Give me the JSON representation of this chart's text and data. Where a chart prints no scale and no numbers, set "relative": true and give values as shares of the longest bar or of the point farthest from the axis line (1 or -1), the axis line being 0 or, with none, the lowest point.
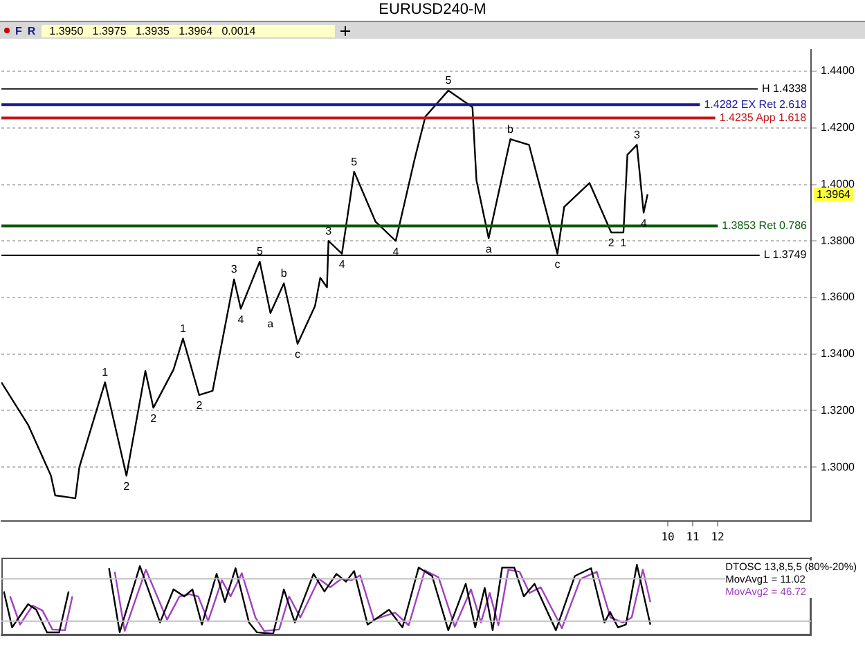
{
  "chart_data": [
    {
      "type": "line",
      "title": "EURUSD240-M",
      "subtitle": "1.3950   1.3975   1.3935   1.3964   0.0014",
      "annotations": [
        "F",
        "R",
        {
          "text": "1",
          "x": -12.59,
          "y": 1.33
        },
        {
          "text": "2",
          "x": -11.73,
          "y": 1.297
        },
        {
          "text": "2",
          "x": -10.65,
          "y": 1.321
        },
        {
          "text": "1",
          "x": -9.46,
          "y": 1.3455
        },
        {
          "text": "2",
          "x": -8.81,
          "y": 1.3255
        },
        {
          "text": "3",
          "x": -7.41,
          "y": 1.3664
        },
        {
          "text": "4",
          "x": -7.14,
          "y": 1.356
        },
        {
          "text": "5",
          "x": -6.38,
          "y": 1.3727
        },
        {
          "text": "a",
          "x": -5.95,
          "y": 1.3545
        },
        {
          "text": "b",
          "x": -5.41,
          "y": 1.365
        },
        {
          "text": "c",
          "x": -4.86,
          "y": 1.3436
        },
        {
          "text": "3",
          "x": -3.62,
          "y": 1.38
        },
        {
          "text": "4",
          "x": -3.08,
          "y": 1.3755
        },
        {
          "text": "5",
          "x": -2.59,
          "y": 1.4045
        },
        {
          "text": "4",
          "x": -0.92,
          "y": 1.38
        },
        {
          "text": "5",
          "x": 1.19,
          "y": 1.4332
        },
        {
          "text": "a",
          "x": 2.81,
          "y": 1.381
        },
        {
          "text": "b",
          "x": 3.68,
          "y": 1.416
        },
        {
          "text": "c",
          "x": 5.57,
          "y": 1.3755
        },
        {
          "text": "2",
          "x": 7.73,
          "y": 1.383
        },
        {
          "text": "1",
          "x": 8.22,
          "y": 1.383
        },
        {
          "text": "3",
          "x": 8.76,
          "y": 1.414
        },
        {
          "text": "4",
          "x": 9.03,
          "y": 1.39
        },
        {
          "text": "1.3964",
          "y": 1.3964
        }
      ],
      "x": [
        -16.75,
        -15.68,
        -14.76,
        -14.59,
        -13.78,
        -13.62,
        -12.59,
        -11.73,
        -10.97,
        -10.65,
        -9.84,
        -9.46,
        -8.81,
        -8.27,
        -7.41,
        -7.14,
        -6.38,
        -5.95,
        -5.41,
        -4.86,
        -4.16,
        -3.95,
        -3.68,
        -3.62,
        -3.08,
        -2.59,
        -1.73,
        -0.92,
        -0.16,
        0.27,
        1.19,
        2.16,
        2.32,
        2.81,
        3.68,
        4.43,
        5.57,
        5.84,
        6.86,
        7.73,
        8.22,
        8.38,
        8.76,
        9.03,
        9.19
      ],
      "values": [
        1.33,
        1.315,
        1.297,
        1.29,
        1.289,
        1.3,
        1.33,
        1.297,
        1.334,
        1.321,
        1.3345,
        1.3455,
        1.3255,
        1.327,
        1.3664,
        1.356,
        1.3727,
        1.3545,
        1.365,
        1.3436,
        1.357,
        1.367,
        1.3636,
        1.38,
        1.3755,
        1.4045,
        1.3868,
        1.38,
        1.409,
        1.424,
        1.4332,
        1.4273,
        1.4014,
        1.381,
        1.416,
        1.414,
        1.3755,
        1.392,
        1.4005,
        1.383,
        1.383,
        1.4105,
        1.414,
        1.39,
        1.3965
      ],
      "color": "#000000",
      "xlim": [
        -16.75,
        15.75
      ],
      "xticks": [
        10,
        11,
        12
      ],
      "ylim": [
        1.281,
        1.4477
      ],
      "yticks": [
        {
          "value": 1.3,
          "label": "1.3000"
        },
        {
          "value": 1.32,
          "label": "1.3200"
        },
        {
          "value": 1.34,
          "label": "1.3400"
        },
        {
          "value": 1.36,
          "label": "1.3600"
        },
        {
          "value": 1.38,
          "label": "1.3800"
        },
        {
          "value": 1.4,
          "label": "1.4000"
        },
        {
          "value": 1.42,
          "label": "1.4200"
        },
        {
          "value": 1.44,
          "label": "1.4400"
        }
      ],
      "grid": "y",
      "ref_lines": [
        {
          "axis": "y",
          "value": 1.4338,
          "label": "H 1.4338",
          "color": "#000000"
        },
        {
          "axis": "y",
          "value": 1.4282,
          "label": "1.4282 EX Ret 2.618",
          "color": "#1a1a9a"
        },
        {
          "axis": "y",
          "value": 1.4235,
          "label": "1.4235 App 1.618",
          "color": "#c01818"
        },
        {
          "axis": "y",
          "value": 1.3853,
          "label": "1.3853 Ret 0.786",
          "color": "#0a5a0a"
        },
        {
          "axis": "y",
          "value": 1.3749,
          "label": "L 1.3749",
          "color": "#000000"
        }
      ]
    },
    {
      "type": "line",
      "title": "DTOSC 13,8,5,5 (80%-20%)",
      "relative": true,
      "legend": "top right",
      "xlim": [
        -16.75,
        15.75
      ],
      "ref_lines": [
        {
          "axis": "y",
          "value": 0.2,
          "color": "#c0c0c0"
        },
        {
          "axis": "y",
          "value": 0.8,
          "color": "#c0c0c0"
        }
      ],
      "series": [
        {
          "name": "MovAvg1 = 11.02",
          "color": "#000000",
          "x": [
            -16.65,
            -16.32,
            -15.68,
            -15.35,
            -14.92,
            -14.43,
            -14.05,
            -13.2,
            -12.43,
            -12.0,
            -11.19,
            -10.38,
            -9.84,
            -9.41,
            -9.08,
            -8.7,
            -8.11,
            -7.78,
            -7.35,
            -6.81,
            -6.49,
            -5.84,
            -5.41,
            -4.97,
            -4.22,
            -3.78,
            -3.3,
            -2.92,
            -2.59,
            -2.05,
            -1.19,
            -0.65,
            0.0,
            0.54,
            1.19,
            1.89,
            2.27,
            2.65,
            2.97,
            3.35,
            3.84,
            4.22,
            4.65,
            5.51,
            6.27,
            6.92,
            7.46,
            7.68,
            8.0,
            8.32,
            8.76,
            9.3
          ],
          "values": [
            0.62,
            0.11,
            0.44,
            0.36,
            0.04,
            0.04,
            0.62,
            null,
            0.95,
            0.04,
            0.98,
            0.18,
            0.65,
            0.55,
            0.65,
            0.15,
            0.87,
            0.47,
            0.95,
            0.18,
            0.04,
            0.02,
            0.65,
            0.18,
            0.87,
            0.62,
            0.87,
            0.76,
            0.91,
            0.15,
            0.36,
            0.11,
            0.96,
            0.84,
            0.07,
            0.73,
            0.11,
            0.67,
            0.07,
            0.96,
            0.96,
            0.55,
            0.73,
            0.07,
            0.84,
            0.95,
            0.18,
            0.33,
            0.11,
            0.15,
            1,
            0.15
          ]
        },
        {
          "name": "MovAvg2 = 46.72",
          "color": "#a040c0",
          "x": [
            -16.4,
            -16.0,
            -15.5,
            -15.1,
            -14.7,
            -14.2,
            -13.9,
            -13.2,
            -12.2,
            -11.8,
            -10.95,
            -10.1,
            -9.6,
            -9.2,
            -8.85,
            -8.45,
            -7.9,
            -7.55,
            -7.1,
            -6.55,
            -6.2,
            -5.6,
            -5.2,
            -4.75,
            -4.0,
            -3.55,
            -3.1,
            -2.7,
            -2.35,
            -1.8,
            -0.95,
            -0.4,
            0.25,
            0.8,
            1.45,
            2.1,
            2.5,
            2.85,
            3.2,
            3.6,
            4.05,
            4.45,
            4.9,
            5.75,
            6.5,
            7.15,
            7.7,
            8.2,
            8.55,
            9.0,
            9.3
          ],
          "values": [
            0.55,
            0.15,
            0.42,
            0.35,
            0.08,
            0.07,
            0.55,
            null,
            0.9,
            0.06,
            0.93,
            0.22,
            0.55,
            0.58,
            0.55,
            0.2,
            0.78,
            0.55,
            0.88,
            0.25,
            0.06,
            0.08,
            0.55,
            0.25,
            0.8,
            0.68,
            0.8,
            0.78,
            0.85,
            0.22,
            0.32,
            0.14,
            0.92,
            0.82,
            0.12,
            0.65,
            0.18,
            0.6,
            0.14,
            0.93,
            0.9,
            0.6,
            0.68,
            0.1,
            0.8,
            0.9,
            0.25,
            0.18,
            0.25,
            0.93,
            0.47
          ]
        }
      ]
    }
  ]
}
